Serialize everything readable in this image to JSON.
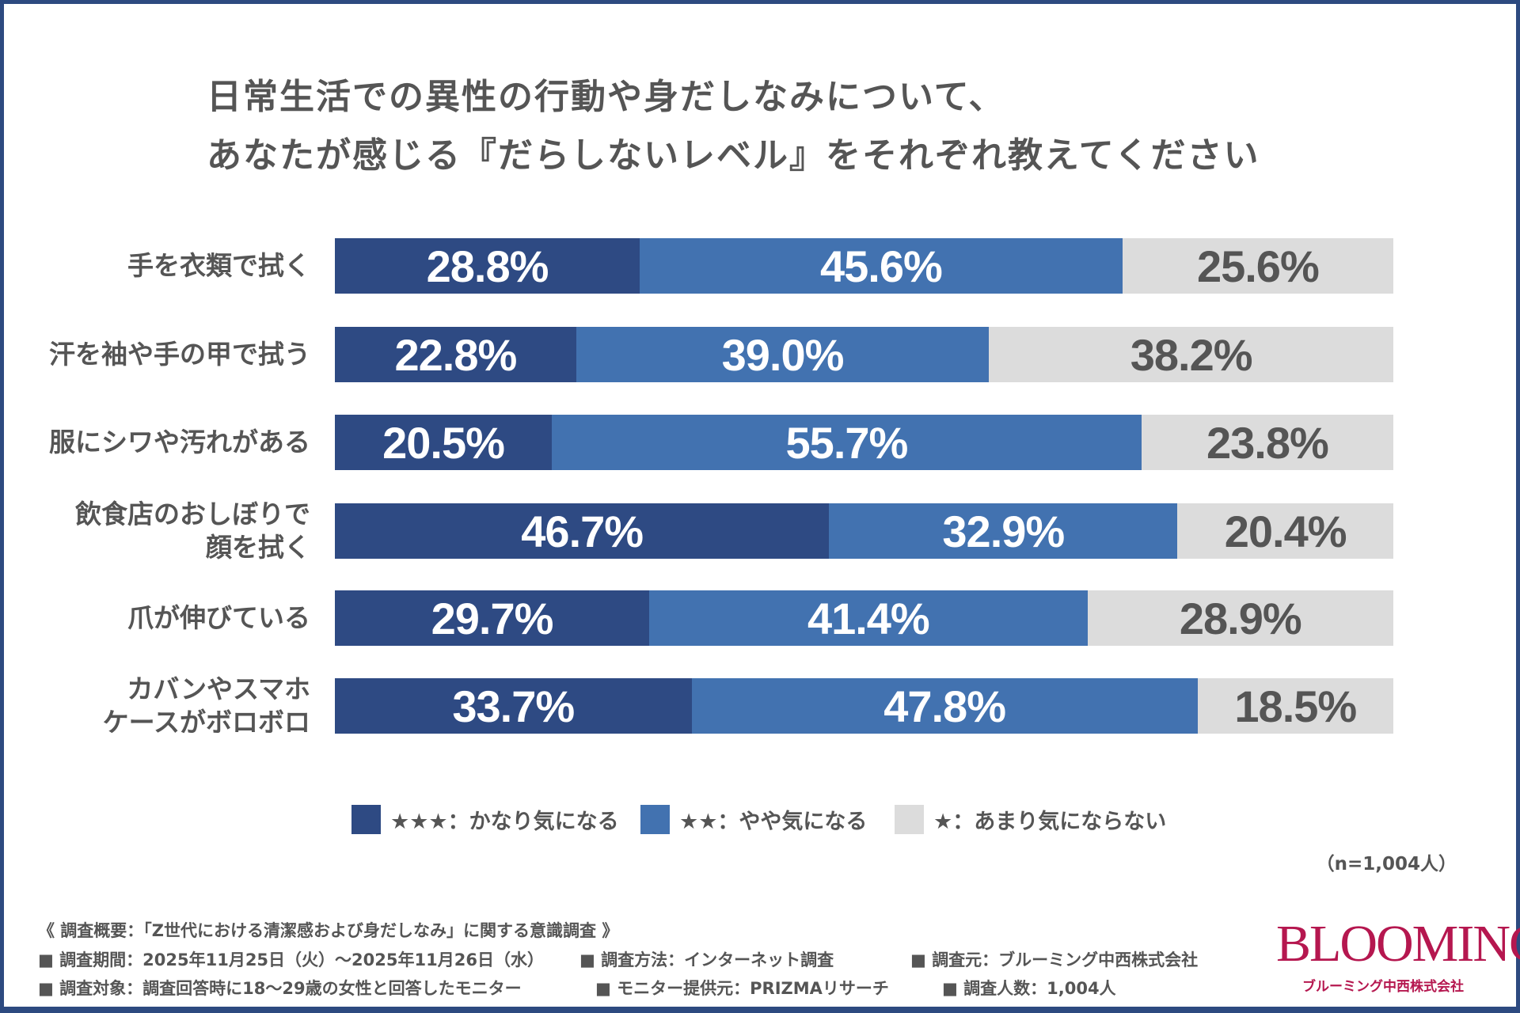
{
  "title_lines": [
    "日常生活での異性の行動や身だしなみについて、",
    "あなたが感じる『だらしないレベル』をそれぞれ教えてください"
  ],
  "chart_data": {
    "type": "bar",
    "orientation": "horizontal-stacked-100",
    "categories": [
      "手を衣類で拭く",
      "汗を袖や手の甲で拭う",
      "服にシワや汚れがある",
      "飲食店のおしぼりで\n顔を拭く",
      "爪が伸びている",
      "カバンやスマホ\nケースがボロボロ"
    ],
    "series": [
      {
        "name": "★★★：かなり気になる",
        "color": "#2e4a83",
        "values": [
          28.8,
          22.8,
          20.5,
          46.7,
          29.7,
          33.7
        ]
      },
      {
        "name": "★★：やや気になる",
        "color": "#4272b0",
        "values": [
          45.6,
          39.0,
          55.7,
          32.9,
          41.4,
          47.8
        ]
      },
      {
        "name": "★：あまり気にならない",
        "color": "#dcdcdc",
        "values": [
          25.6,
          38.2,
          23.8,
          20.4,
          28.9,
          18.5
        ]
      }
    ],
    "unit": "%",
    "xlim": [
      0,
      100
    ],
    "legend": "bottom"
  },
  "sample_note": "（n=1,004人）",
  "footer": {
    "summary": "《 調査概要：「Z世代における清潔感および身だしなみ」に関する意識調査 》",
    "items": [
      "■ 調査期間：2025年11月25日（火）～2025年11月26日（水）",
      "■ 調査方法：インターネット調査",
      "■ 調査元：ブルーミング中西株式会社",
      "■ 調査対象：調査回答時に18～29歳の女性と回答したモニター",
      "■ モニター提供元：PRIZMAリサーチ",
      "■ 調査人数：1,004人"
    ]
  },
  "logo": {
    "name": "BLOOMING",
    "sub": "ブルーミング中西株式会社"
  }
}
